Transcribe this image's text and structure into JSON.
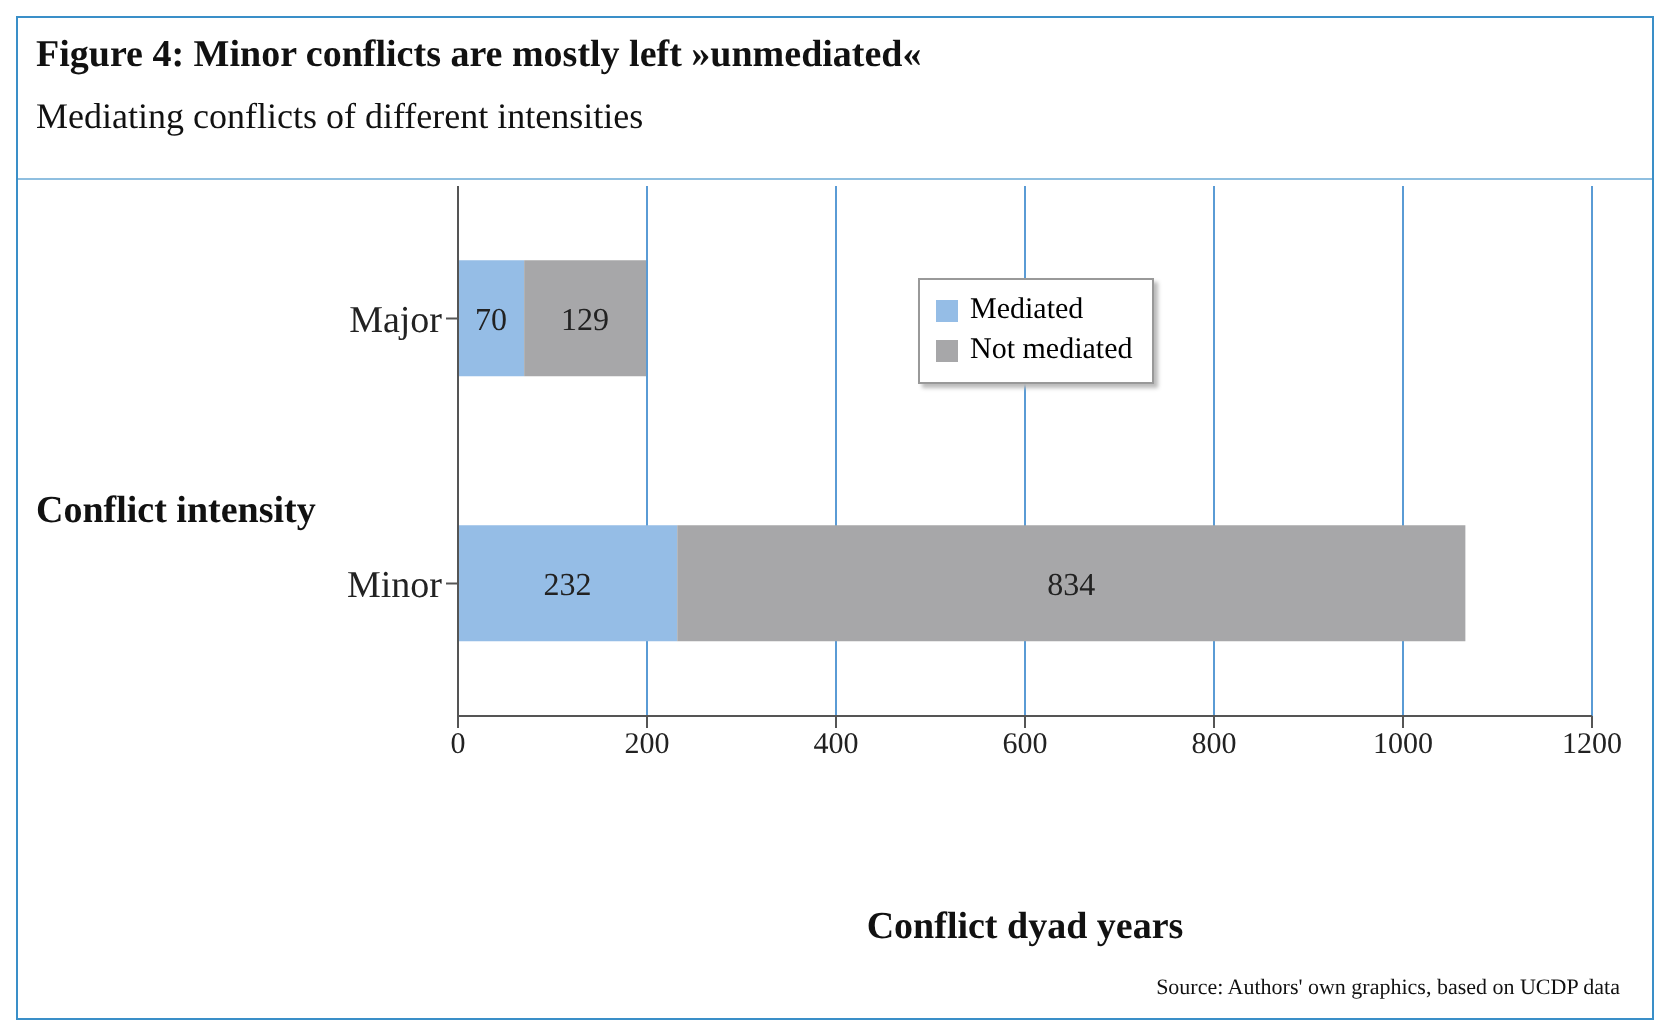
{
  "chart_data": {
    "type": "bar",
    "orientation": "horizontal",
    "stacked": true,
    "title": "Figure 4: Minor conflicts are mostly left »unmediated«",
    "subtitle": "Mediating conflicts of different intensities",
    "xlabel": "Conflict dyad years",
    "ylabel": "Conflict intensity",
    "categories": [
      "Major",
      "Minor"
    ],
    "series": [
      {
        "name": "Mediated",
        "color": "#95bde6",
        "values": [
          70,
          232
        ]
      },
      {
        "name": "Not mediated",
        "color": "#a7a7a9",
        "values": [
          129,
          834
        ]
      }
    ],
    "xlim": [
      0,
      1200
    ],
    "xticks": [
      0,
      200,
      400,
      600,
      800,
      1000,
      1200
    ],
    "grid": "x",
    "legend": "top",
    "data_labels": true,
    "annotations": [
      "Source: Authors' own graphics, based on UCDP data"
    ]
  }
}
